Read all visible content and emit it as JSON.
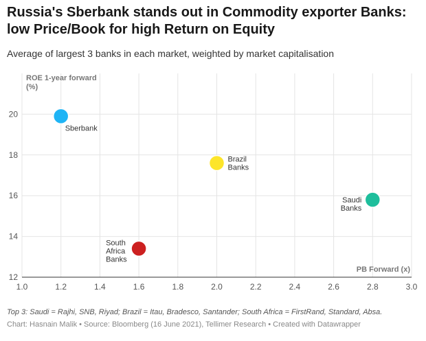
{
  "header": {
    "title": "Russia's Sberbank stands out in Commodity exporter Banks: low Price/Book for high Return on Equity",
    "subtitle": "Average of largest 3 banks in each market, weighted by market capitalisation"
  },
  "footer": {
    "notes": "Top 3: Saudi = Rajhi, SNB, Riyad; Brazil = Itau, Bradesco, Santander; South Africa = FirstRand, Standard, Absa.",
    "credits": "Chart: Hasnain Malik • Source: Bloomberg (16 June 2021), Tellimer Research • Created with Datawrapper"
  },
  "chart_data": {
    "type": "scatter",
    "xlabel": "PB Forward (x)",
    "ylabel_lines": [
      "ROE 1-year forward",
      "(%)"
    ],
    "xlim": [
      1.0,
      3.0
    ],
    "ylim": [
      12,
      22
    ],
    "x_ticks": [
      1.0,
      1.2,
      1.4,
      1.6,
      1.8,
      2.0,
      2.2,
      2.4,
      2.6,
      2.8,
      3.0
    ],
    "x_tick_labels": [
      "1.0",
      "1.2",
      "1.4",
      "1.6",
      "1.8",
      "2.0",
      "2.2",
      "2.4",
      "2.6",
      "2.8",
      "3.0"
    ],
    "y_ticks": [
      12,
      14,
      16,
      18,
      20
    ],
    "y_tick_labels": [
      "12",
      "14",
      "16",
      "18",
      "20"
    ],
    "grid": true,
    "points": [
      {
        "label_lines": [
          "Sberbank"
        ],
        "x": 1.2,
        "y": 19.9,
        "color": "#1fb4f5",
        "label_side": "below-right"
      },
      {
        "label_lines": [
          "Brazil",
          "Banks"
        ],
        "x": 2.0,
        "y": 17.6,
        "color": "#fde52a",
        "label_side": "right"
      },
      {
        "label_lines": [
          "Saudi",
          "Banks"
        ],
        "x": 2.8,
        "y": 15.8,
        "color": "#1ebe9c",
        "label_side": "left"
      },
      {
        "label_lines": [
          "South",
          "Africa",
          "Banks"
        ],
        "x": 1.6,
        "y": 13.4,
        "color": "#cc2020",
        "label_side": "left"
      }
    ]
  }
}
